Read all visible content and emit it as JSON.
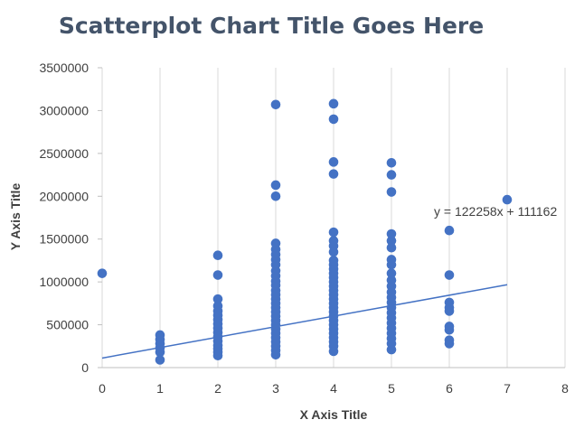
{
  "chart_data": {
    "type": "scatter",
    "title": "Scatterplot Chart Title Goes Here",
    "xlabel": "X Axis Title",
    "ylabel": "Y Axis Title",
    "xlim": [
      0,
      8
    ],
    "ylim": [
      0,
      3500000
    ],
    "xticks": [
      "0",
      "1",
      "2",
      "3",
      "4",
      "5",
      "6",
      "7",
      "8"
    ],
    "yticks": [
      "0",
      "500000",
      "1000000",
      "1500000",
      "2000000",
      "2500000",
      "3000000",
      "3500000"
    ],
    "grid": "vertical",
    "marker_color": "#4472c4",
    "trendline": {
      "equation": "y = 122258x + 111162",
      "slope": 122258,
      "intercept": 111162,
      "x_range": [
        0,
        7
      ],
      "color": "#4472c4"
    },
    "series": [
      {
        "points": [
          [
            0,
            1100000
          ],
          [
            1,
            380000
          ],
          [
            1,
            330000
          ],
          [
            1,
            280000
          ],
          [
            1,
            230000
          ],
          [
            1,
            180000
          ],
          [
            1,
            90000
          ],
          [
            2,
            1310000
          ],
          [
            2,
            1080000
          ],
          [
            2,
            800000
          ],
          [
            2,
            720000
          ],
          [
            2,
            660000
          ],
          [
            2,
            610000
          ],
          [
            2,
            560000
          ],
          [
            2,
            510000
          ],
          [
            2,
            460000
          ],
          [
            2,
            410000
          ],
          [
            2,
            360000
          ],
          [
            2,
            310000
          ],
          [
            2,
            260000
          ],
          [
            2,
            220000
          ],
          [
            2,
            180000
          ],
          [
            2,
            140000
          ],
          [
            3,
            3070000
          ],
          [
            3,
            2130000
          ],
          [
            3,
            2000000
          ],
          [
            3,
            1450000
          ],
          [
            3,
            1380000
          ],
          [
            3,
            1320000
          ],
          [
            3,
            1260000
          ],
          [
            3,
            1200000
          ],
          [
            3,
            1130000
          ],
          [
            3,
            1070000
          ],
          [
            3,
            1010000
          ],
          [
            3,
            960000
          ],
          [
            3,
            900000
          ],
          [
            3,
            850000
          ],
          [
            3,
            800000
          ],
          [
            3,
            750000
          ],
          [
            3,
            700000
          ],
          [
            3,
            650000
          ],
          [
            3,
            600000
          ],
          [
            3,
            550000
          ],
          [
            3,
            500000
          ],
          [
            3,
            450000
          ],
          [
            3,
            400000
          ],
          [
            3,
            350000
          ],
          [
            3,
            300000
          ],
          [
            3,
            250000
          ],
          [
            3,
            200000
          ],
          [
            3,
            150000
          ],
          [
            4,
            3080000
          ],
          [
            4,
            2900000
          ],
          [
            4,
            2400000
          ],
          [
            4,
            2260000
          ],
          [
            4,
            1580000
          ],
          [
            4,
            1480000
          ],
          [
            4,
            1420000
          ],
          [
            4,
            1350000
          ],
          [
            4,
            1250000
          ],
          [
            4,
            1200000
          ],
          [
            4,
            1150000
          ],
          [
            4,
            1100000
          ],
          [
            4,
            1050000
          ],
          [
            4,
            1000000
          ],
          [
            4,
            950000
          ],
          [
            4,
            900000
          ],
          [
            4,
            850000
          ],
          [
            4,
            800000
          ],
          [
            4,
            750000
          ],
          [
            4,
            700000
          ],
          [
            4,
            650000
          ],
          [
            4,
            600000
          ],
          [
            4,
            550000
          ],
          [
            4,
            500000
          ],
          [
            4,
            450000
          ],
          [
            4,
            400000
          ],
          [
            4,
            350000
          ],
          [
            4,
            300000
          ],
          [
            4,
            250000
          ],
          [
            4,
            190000
          ],
          [
            5,
            2390000
          ],
          [
            5,
            2250000
          ],
          [
            5,
            2050000
          ],
          [
            5,
            1560000
          ],
          [
            5,
            1480000
          ],
          [
            5,
            1400000
          ],
          [
            5,
            1260000
          ],
          [
            5,
            1200000
          ],
          [
            5,
            1100000
          ],
          [
            5,
            1020000
          ],
          [
            5,
            950000
          ],
          [
            5,
            880000
          ],
          [
            5,
            820000
          ],
          [
            5,
            760000
          ],
          [
            5,
            700000
          ],
          [
            5,
            640000
          ],
          [
            5,
            580000
          ],
          [
            5,
            520000
          ],
          [
            5,
            460000
          ],
          [
            5,
            400000
          ],
          [
            5,
            340000
          ],
          [
            5,
            280000
          ],
          [
            5,
            210000
          ],
          [
            6,
            1600000
          ],
          [
            6,
            1080000
          ],
          [
            6,
            760000
          ],
          [
            6,
            700000
          ],
          [
            6,
            660000
          ],
          [
            6,
            480000
          ],
          [
            6,
            440000
          ],
          [
            6,
            320000
          ],
          [
            6,
            280000
          ],
          [
            7,
            1960000
          ]
        ]
      }
    ]
  }
}
